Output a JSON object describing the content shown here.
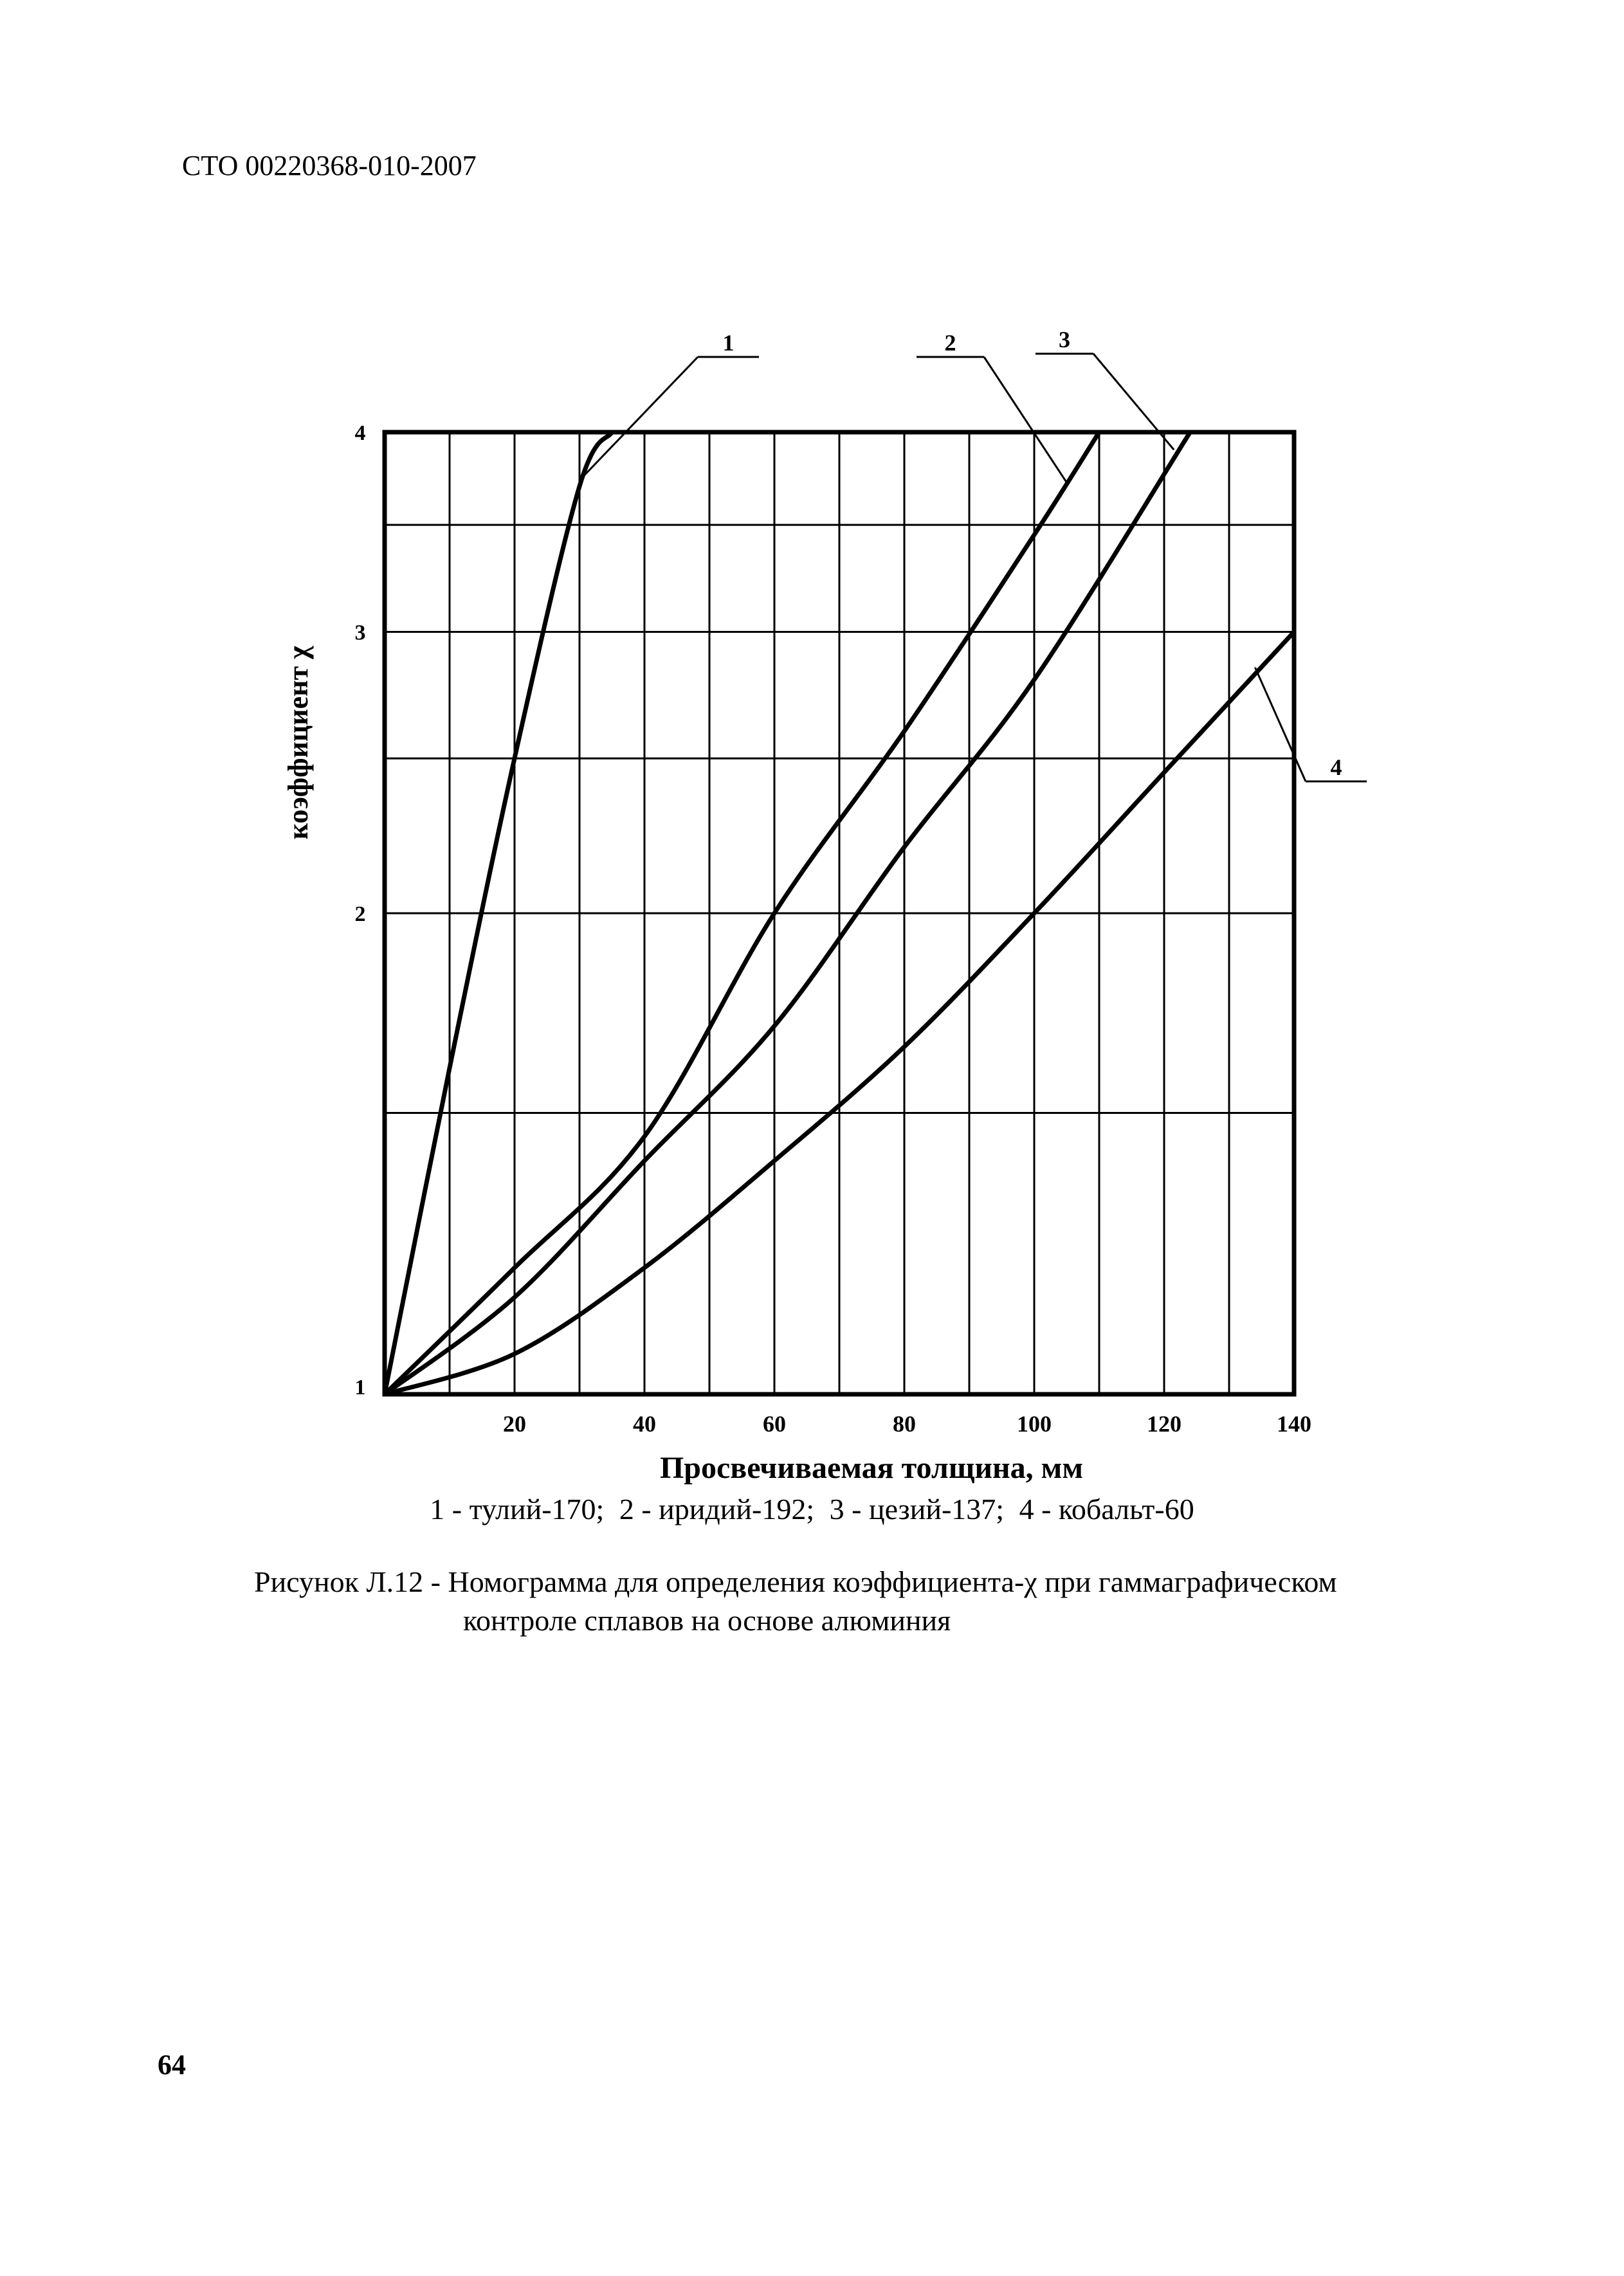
{
  "header": {
    "doc_code": "СТО 00220368-010-2007"
  },
  "footer": {
    "page_number": "64"
  },
  "legend": {
    "items": [
      "1 - тулий-170;",
      "2 - иридий-192;",
      "3 - цезий-137;",
      "4 - кобальт-60"
    ]
  },
  "caption": {
    "line1": "Рисунок Л.12 - Номограмма для определения коэффициента-χ при гаммаграфическом",
    "line2": "контроле сплавов на основе алюминия"
  },
  "chart_data": {
    "type": "line",
    "title": "",
    "xlabel": "Просвечиваемая толщина, мм",
    "ylabel": "коэффициент  χ",
    "xlim": [
      0,
      140
    ],
    "ylim": [
      1,
      4
    ],
    "y_scale": "log",
    "grid": true,
    "x_ticks": [
      20,
      40,
      60,
      80,
      100,
      120,
      140
    ],
    "x_tick_labels": [
      "20",
      "40",
      "60",
      "80",
      "100",
      "120",
      "140"
    ],
    "y_ticks": [
      1,
      2,
      3,
      4
    ],
    "y_tick_labels": [
      "1",
      "2",
      "3",
      "4"
    ],
    "series": [
      {
        "name": "1",
        "x": [
          0,
          10,
          20,
          30,
          35
        ],
        "y": [
          1,
          1.6,
          2.5,
          3.7,
          4
        ]
      },
      {
        "name": "2",
        "x": [
          0,
          20,
          40,
          60,
          80,
          100,
          110
        ],
        "y": [
          1,
          1.2,
          1.45,
          2.0,
          2.6,
          3.45,
          4
        ]
      },
      {
        "name": "3",
        "x": [
          0,
          20,
          40,
          60,
          80,
          100,
          124
        ],
        "y": [
          1,
          1.15,
          1.4,
          1.7,
          2.2,
          2.8,
          4
        ]
      },
      {
        "name": "4",
        "x": [
          0,
          20,
          40,
          60,
          80,
          100,
          120,
          140
        ],
        "y": [
          1,
          1.06,
          1.2,
          1.4,
          1.65,
          2.0,
          2.45,
          3.0
        ]
      }
    ]
  }
}
